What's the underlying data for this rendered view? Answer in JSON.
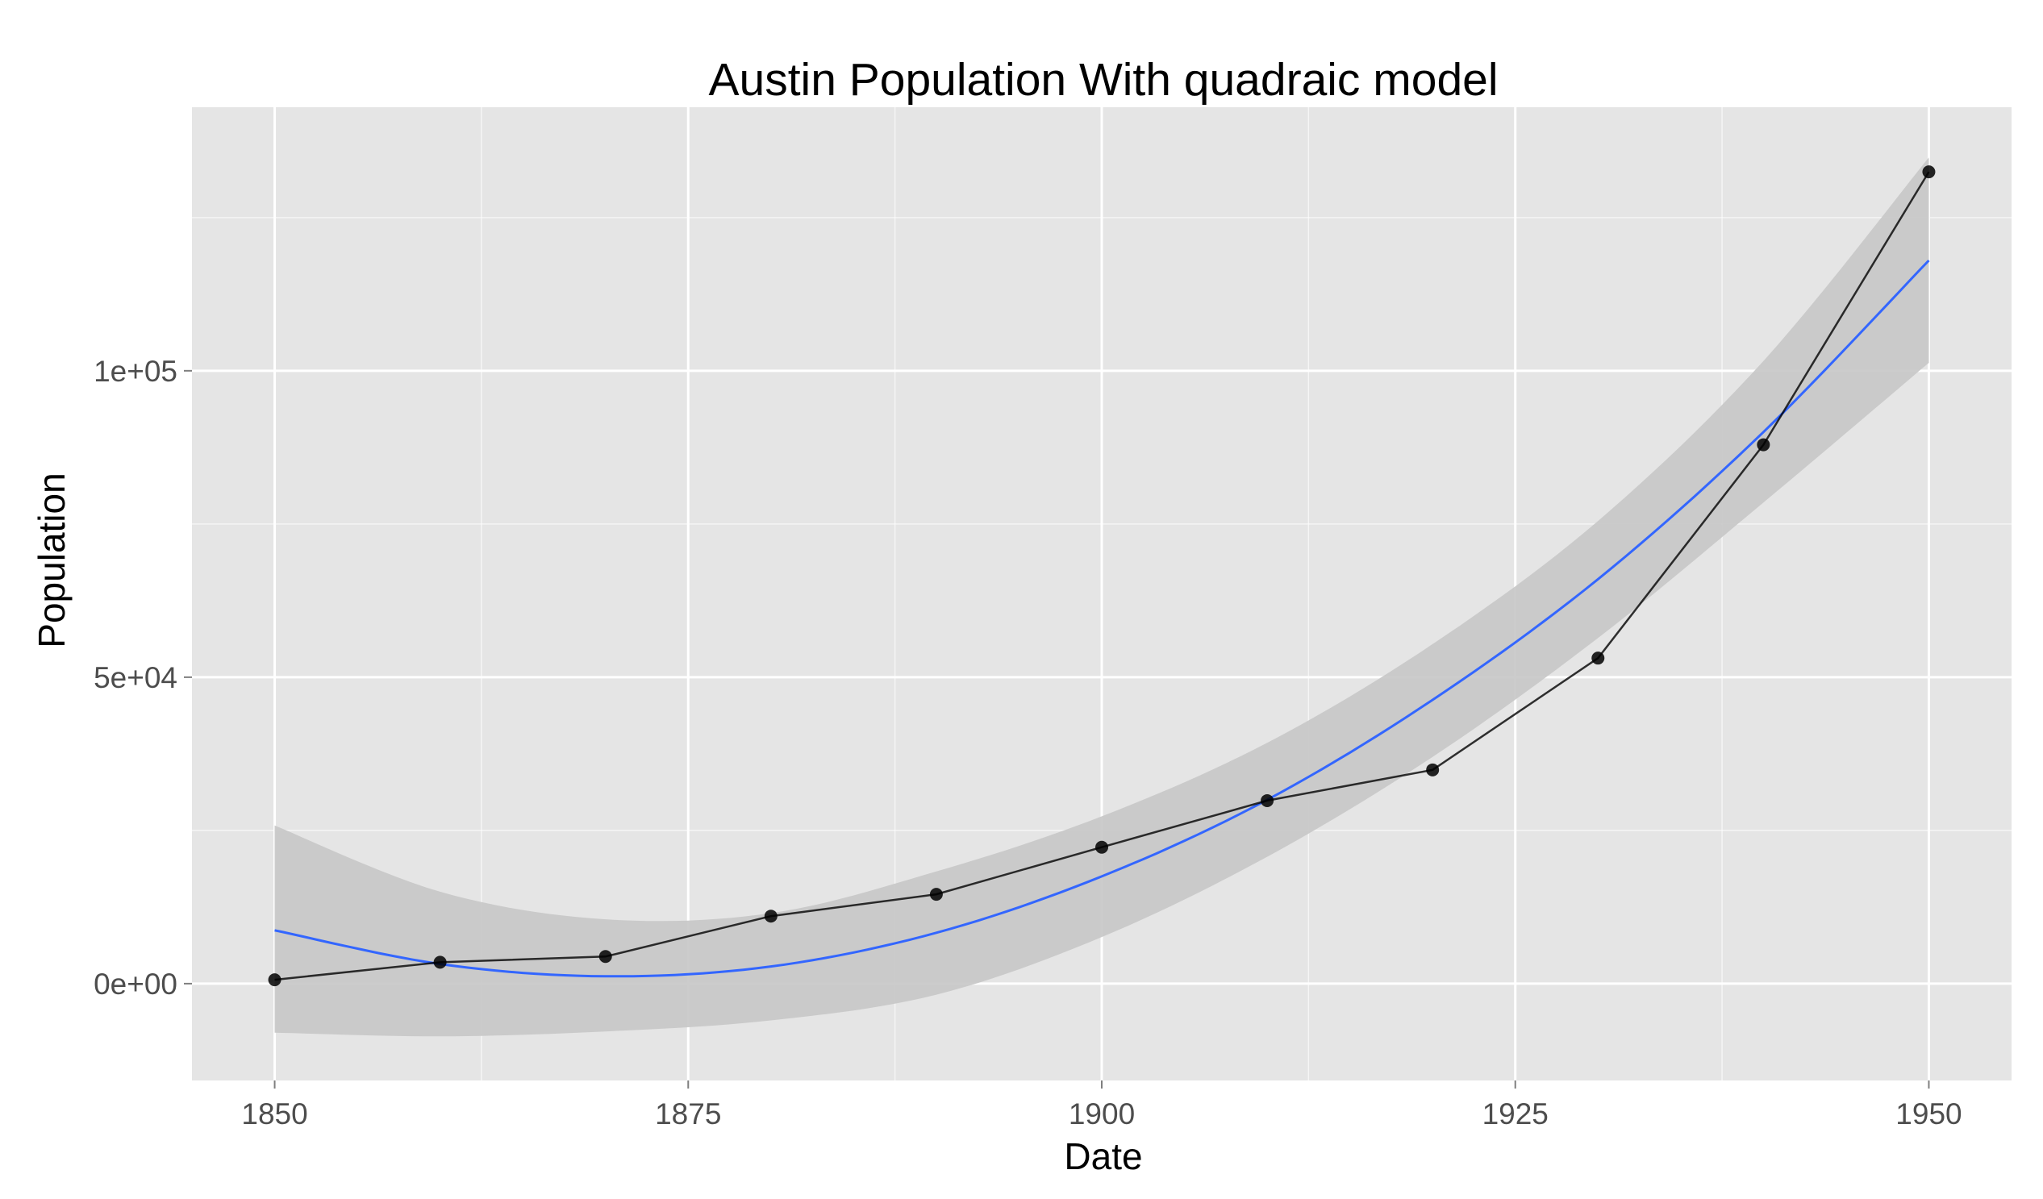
{
  "chart_data": {
    "type": "line",
    "title": "Austin Population With quadraic model",
    "xlabel": "Date",
    "ylabel": "Population",
    "xlim": [
      1845,
      1955
    ],
    "ylim": [
      -15800,
      143000
    ],
    "x_ticks": [
      1850,
      1875,
      1900,
      1925,
      1950
    ],
    "x_tick_labels": [
      "1850",
      "1875",
      "1900",
      "1925",
      "1950"
    ],
    "y_ticks": [
      0,
      50000,
      100000
    ],
    "y_tick_labels": [
      "0e+00",
      "5e+04",
      "1e+05"
    ],
    "grid": true,
    "legend": "none",
    "colors": {
      "panel_background": "#e5e5e5",
      "grid": "#ffffff",
      "observed_line": "#000000",
      "observed_points": "#000000",
      "fit_line": "#3366ff",
      "confidence_band": "#c6c6c6"
    },
    "series": [
      {
        "kind": "observed",
        "x": [
          1850,
          1860,
          1870,
          1880,
          1890,
          1900,
          1910,
          1920,
          1930,
          1940,
          1950
        ],
        "values": [
          629,
          3494,
          4428,
          11013,
          14575,
          22258,
          29860,
          34876,
          53120,
          87930,
          132459
        ]
      },
      {
        "kind": "quadratic_fit",
        "x": [
          1850,
          1860,
          1870,
          1880,
          1890,
          1900,
          1910,
          1920,
          1930,
          1940,
          1950
        ],
        "values": [
          8700,
          3200,
          1200,
          2800,
          8300,
          17500,
          30000,
          46300,
          66000,
          90000,
          118000
        ]
      },
      {
        "kind": "confidence_band",
        "x": [
          1850,
          1860,
          1870,
          1880,
          1890,
          1900,
          1910,
          1920,
          1930,
          1940,
          1950
        ],
        "lower": [
          -8000,
          -8600,
          -7800,
          -6000,
          -1800,
          7600,
          20700,
          37000,
          56400,
          78500,
          101300
        ],
        "upper": [
          25800,
          15000,
          10500,
          11500,
          18300,
          27300,
          39300,
          55400,
          75500,
          101600,
          134800
        ]
      }
    ]
  }
}
